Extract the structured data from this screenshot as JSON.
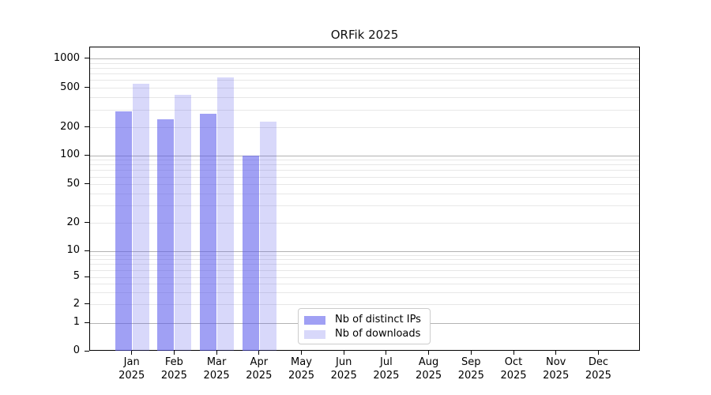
{
  "title": "ORFik 2025",
  "chart_data": {
    "type": "bar",
    "title": "ORFik 2025",
    "categories": [
      "Jan",
      "Feb",
      "Mar",
      "Apr",
      "May",
      "Jun",
      "Jul",
      "Aug",
      "Sep",
      "Oct",
      "Nov",
      "Dec"
    ],
    "year_label": "2025",
    "series": [
      {
        "name": "Nb of distinct IPs",
        "color": "rgba(85,85,235,0.56)",
        "values": [
          290,
          243,
          278,
          100,
          null,
          null,
          null,
          null,
          null,
          null,
          null,
          null
        ]
      },
      {
        "name": "Nb of downloads",
        "color": "rgba(85,85,235,0.23)",
        "values": [
          560,
          433,
          640,
          230,
          null,
          null,
          null,
          null,
          null,
          null,
          null,
          null
        ]
      }
    ],
    "y_axis": {
      "scale": "log-like",
      "tick_labels": [
        0,
        1,
        2,
        5,
        10,
        20,
        50,
        100,
        200,
        500,
        1000
      ],
      "major_gridlines": [
        1,
        10,
        100,
        1000
      ],
      "minor_gridlines": [
        2,
        3,
        4,
        5,
        6,
        7,
        8,
        9,
        20,
        30,
        40,
        50,
        60,
        70,
        80,
        90,
        200,
        300,
        400,
        500,
        600,
        700,
        800,
        900
      ],
      "ylim_top": 1300
    },
    "legend": {
      "position": "bottom-center-inside",
      "entries": [
        "Nb of distinct IPs",
        "Nb of downloads"
      ]
    },
    "colors": {
      "bar_base": "#5555eb",
      "grid_major": "#b3b3b3",
      "grid_minor": "#e7e7e7",
      "axis": "#000000"
    }
  }
}
